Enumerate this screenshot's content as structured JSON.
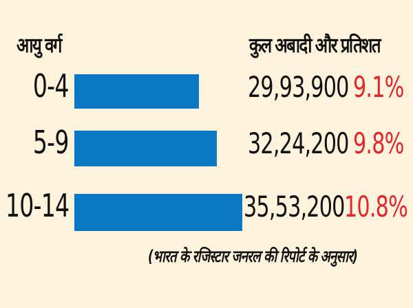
{
  "chart_data": {
    "type": "bar",
    "orientation": "horizontal",
    "xlabel": "आयु वर्ग",
    "ylabel": "कुल अबादी और प्रतिशत",
    "categories": [
      "0-4",
      "5-9",
      "10-14"
    ],
    "values": [
      2993900,
      3224200,
      3553200
    ],
    "value_labels": [
      "29,93,900",
      "32,24,200",
      "35,53,200"
    ],
    "percent_labels": [
      "9.1%",
      "9.8%",
      "10.8%"
    ],
    "percent_values": [
      9.1,
      9.8,
      10.8
    ],
    "xlim": [
      1400000,
      3553200
    ],
    "source_note": "(भारत के रजिस्टार जनरल की रिपोर्ट के अनुसार)",
    "grid": false
  },
  "colors": {
    "bar": "#0a78c2",
    "percent": "#e3262c",
    "background": "#fdf3dc",
    "text": "#111111"
  }
}
